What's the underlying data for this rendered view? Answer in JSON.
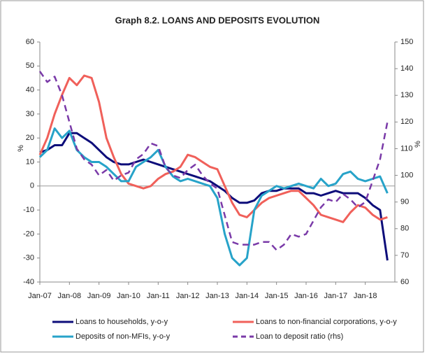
{
  "chart_data": {
    "type": "line",
    "title": "Graph 8.2. LOANS AND DEPOSITS EVOLUTION",
    "ylabel": "%",
    "y2label": "%",
    "categories": [
      "Jan-07",
      null,
      null,
      null,
      "Jan-08",
      null,
      null,
      null,
      "Jan-09",
      null,
      null,
      null,
      "Jan-10",
      null,
      null,
      null,
      "Jan-11",
      null,
      null,
      null,
      "Jan-12",
      null,
      null,
      null,
      "Jan-13",
      null,
      null,
      null,
      "Jan-14",
      null,
      null,
      null,
      "Jan-15",
      null,
      null,
      null,
      "Jan-16",
      null,
      null,
      null,
      "Jan-17",
      null,
      null,
      null,
      "Jan-18",
      null,
      null,
      null
    ],
    "ylim": [
      -40,
      60
    ],
    "yticks": [
      -40,
      -30,
      -20,
      -10,
      0,
      10,
      20,
      30,
      40,
      50,
      60
    ],
    "y2lim": [
      60,
      150
    ],
    "y2ticks": [
      60,
      70,
      80,
      90,
      100,
      110,
      120,
      130,
      140,
      150
    ],
    "series": [
      {
        "name": "Loans to households, y-o-y",
        "color": "#0d0d7a",
        "dash": false,
        "values": [
          14,
          15,
          17,
          17,
          22,
          22,
          20,
          18,
          15,
          12,
          10,
          9,
          9,
          10,
          11,
          10,
          9,
          8,
          7,
          6,
          5,
          4,
          3,
          2,
          0,
          -2,
          -5,
          -7,
          -7,
          -6,
          -3,
          -2,
          -2,
          -1,
          -1,
          -1,
          -3,
          -3,
          -4,
          -3,
          -2,
          -3,
          -3,
          -3,
          -5,
          -8,
          -10,
          -31
        ]
      },
      {
        "name": "Loans to non-financial corporations, y-o-y",
        "color": "#f0605a",
        "dash": false,
        "values": [
          13,
          20,
          30,
          38,
          45,
          42,
          46,
          45,
          35,
          20,
          12,
          5,
          1,
          0,
          -1,
          0,
          3,
          5,
          6,
          8,
          13,
          12,
          10,
          8,
          7,
          0,
          -7,
          -12,
          -13,
          -10,
          -7,
          -5,
          -4,
          -3,
          -2,
          -2,
          -5,
          -8,
          -12,
          -13,
          -14,
          -15,
          -11,
          -8,
          -9,
          -12,
          -14,
          -13
        ]
      },
      {
        "name": "Deposits of non-MFIs, y-o-y",
        "color": "#27a3c9",
        "dash": false,
        "values": [
          12,
          15,
          24,
          20,
          23,
          15,
          12,
          10,
          10,
          8,
          5,
          2,
          2,
          8,
          10,
          12,
          15,
          8,
          4,
          2,
          3,
          2,
          1,
          0,
          -5,
          -20,
          -30,
          -33,
          -30,
          -10,
          -4,
          -2,
          0,
          -1,
          0,
          1,
          0,
          -1,
          3,
          0,
          1,
          5,
          6,
          3,
          2,
          3,
          4,
          -3
        ]
      },
      {
        "name": "Loan to deposit ratio (rhs)",
        "color": "#7a3aa8",
        "dash": true,
        "axis": "y2",
        "values": [
          139,
          135,
          137,
          130,
          120,
          110,
          106,
          104,
          100,
          102,
          98,
          100,
          101,
          106,
          108,
          112,
          111,
          103,
          100,
          99,
          102,
          104,
          100,
          97,
          95,
          85,
          75,
          74,
          74,
          74,
          75,
          75,
          72,
          74,
          78,
          77,
          78,
          83,
          88,
          91,
          90,
          93,
          91,
          88,
          90,
          98,
          106,
          120
        ]
      }
    ]
  }
}
